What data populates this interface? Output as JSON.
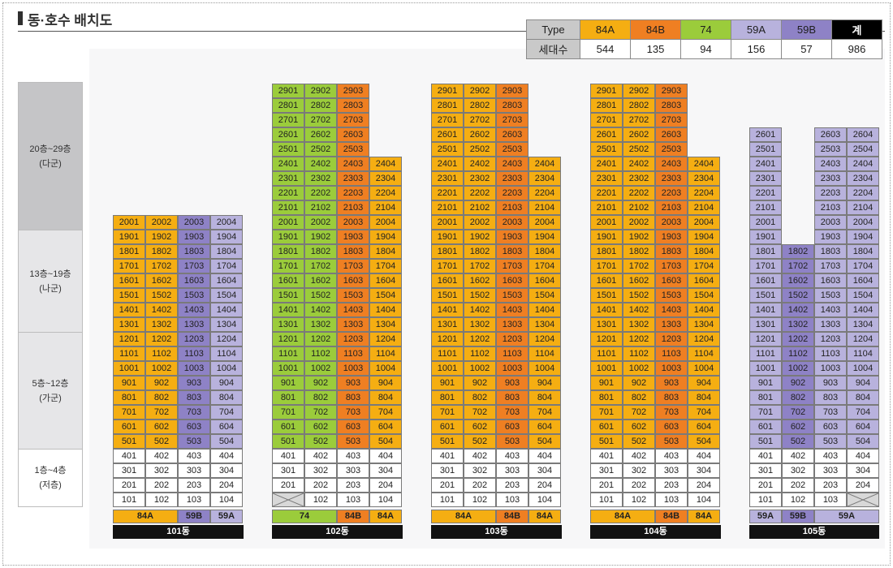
{
  "colors": {
    "84A": "#f5ae12",
    "84B": "#ef7f22",
    "74": "#9bcc3b",
    "59A": "#b8b2dd",
    "59B": "#8e82c6",
    "low": "#ffffff",
    "total": "#000000"
  },
  "title": "동·호수 배치도",
  "legend": {
    "header_label": "Type",
    "count_label": "세대수",
    "types": [
      {
        "key": "84A",
        "label": "84A",
        "count": "544"
      },
      {
        "key": "84B",
        "label": "84B",
        "count": "135"
      },
      {
        "key": "74",
        "label": "74",
        "count": "94"
      },
      {
        "key": "59A",
        "label": "59A",
        "count": "156"
      },
      {
        "key": "59B",
        "label": "59B",
        "count": "57"
      },
      {
        "key": "total",
        "label": "계",
        "count": "986"
      }
    ]
  },
  "floor_groups": [
    {
      "range": "20층~29층",
      "group": "(다군)",
      "top": 29,
      "bottom": 20
    },
    {
      "range": "13층~19층",
      "group": "(나군)",
      "top": 19,
      "bottom": 13
    },
    {
      "range": "5층~12층",
      "group": "(가군)",
      "top": 12,
      "bottom": 5
    },
    {
      "range": "1층~4층",
      "group": "(저층)",
      "top": 4,
      "bottom": 1
    }
  ],
  "buildings": [
    {
      "name": "101동",
      "columns": [
        {
          "line": "01",
          "type": "84A",
          "top": 20,
          "bottom": 1,
          "missing": []
        },
        {
          "line": "02",
          "type": "84A",
          "top": 20,
          "bottom": 1,
          "missing": []
        },
        {
          "line": "03",
          "type": "59B",
          "top": 20,
          "bottom": 1,
          "missing": []
        },
        {
          "line": "04",
          "type": "59A",
          "top": 20,
          "bottom": 1,
          "missing": []
        }
      ],
      "type_strip": [
        {
          "label": "84A",
          "type": "84A",
          "span": 2
        },
        {
          "label": "59B",
          "type": "59B",
          "span": 1
        },
        {
          "label": "59A",
          "type": "59A",
          "span": 1
        }
      ]
    },
    {
      "name": "102동",
      "columns": [
        {
          "line": "01",
          "type": "74",
          "top": 29,
          "bottom": 1,
          "missing": [
            1
          ]
        },
        {
          "line": "02",
          "type": "74",
          "top": 29,
          "bottom": 1,
          "missing": []
        },
        {
          "line": "03",
          "type": "84B",
          "top": 29,
          "bottom": 1,
          "missing": []
        },
        {
          "line": "04",
          "type": "84A",
          "top": 24,
          "bottom": 1,
          "missing": []
        }
      ],
      "type_strip": [
        {
          "label": "74",
          "type": "74",
          "span": 2
        },
        {
          "label": "84B",
          "type": "84B",
          "span": 1
        },
        {
          "label": "84A",
          "type": "84A",
          "span": 1
        }
      ]
    },
    {
      "name": "103동",
      "columns": [
        {
          "line": "01",
          "type": "84A",
          "top": 29,
          "bottom": 1,
          "missing": []
        },
        {
          "line": "02",
          "type": "84A",
          "top": 29,
          "bottom": 1,
          "missing": []
        },
        {
          "line": "03",
          "type": "84B",
          "top": 29,
          "bottom": 1,
          "missing": []
        },
        {
          "line": "04",
          "type": "84A",
          "top": 24,
          "bottom": 1,
          "missing": []
        }
      ],
      "type_strip": [
        {
          "label": "84A",
          "type": "84A",
          "span": 2
        },
        {
          "label": "84B",
          "type": "84B",
          "span": 1
        },
        {
          "label": "84A",
          "type": "84A",
          "span": 1
        }
      ]
    },
    {
      "name": "104동",
      "columns": [
        {
          "line": "01",
          "type": "84A",
          "top": 29,
          "bottom": 1,
          "missing": []
        },
        {
          "line": "02",
          "type": "84A",
          "top": 29,
          "bottom": 1,
          "missing": []
        },
        {
          "line": "03",
          "type": "84B",
          "top": 29,
          "bottom": 1,
          "missing": []
        },
        {
          "line": "04",
          "type": "84A",
          "top": 24,
          "bottom": 1,
          "missing": []
        }
      ],
      "type_strip": [
        {
          "label": "84A",
          "type": "84A",
          "span": 2
        },
        {
          "label": "84B",
          "type": "84B",
          "span": 1
        },
        {
          "label": "84A",
          "type": "84A",
          "span": 1
        }
      ]
    },
    {
      "name": "105동",
      "columns": [
        {
          "line": "01",
          "type": "59A",
          "top": 26,
          "bottom": 1,
          "missing": []
        },
        {
          "line": "02",
          "type": "59B",
          "top": 18,
          "bottom": 1,
          "missing": []
        },
        {
          "line": "03",
          "type": "59A",
          "top": 26,
          "bottom": 1,
          "missing": []
        },
        {
          "line": "04",
          "type": "59A",
          "top": 26,
          "bottom": 1,
          "missing": [
            1
          ]
        }
      ],
      "type_strip": [
        {
          "label": "59A",
          "type": "59A",
          "span": 1
        },
        {
          "label": "59B",
          "type": "59B",
          "span": 1
        },
        {
          "label": "59A",
          "type": "59A",
          "span": 2
        }
      ]
    }
  ]
}
